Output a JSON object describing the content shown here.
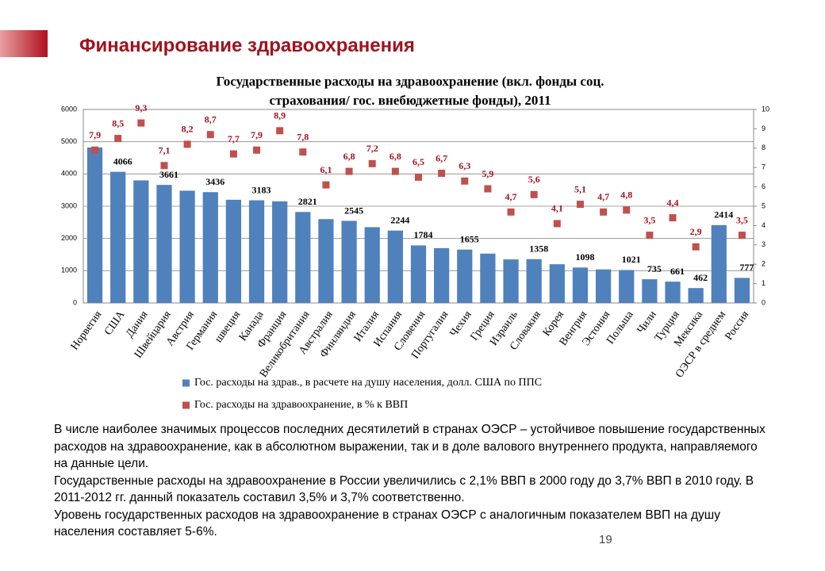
{
  "slide": {
    "title": "Финансирование здравоохранения",
    "paragraphs": [
      "В числе наиболее значимых процессов последних десятилетий в странах ОЭСР – устойчивое повышение государственных расходов на здравоохранение, как в абсолютном выражении, так и в доле валового внутреннего продукта, направляемого на данные цели.",
      "Государственные расходы на здравоохранение в России увеличились с 2,1% ВВП в 2000 году до 3,7% ВВП в 2010 году. В 2011-2012 гг. данный показатель составил 3,5% и 3,7% соответственно.",
      "Уровень государственных расходов на здравоохранение в странах ОЭСР с аналогичным показателем ВВП на душу населения составляет 5-6%."
    ],
    "page_number": 19
  },
  "chart_data": {
    "type": "bar",
    "title": "Государственные расходы на здравоохранение (вкл. фонды соц. страхования/ гос. внебюджетные фонды), 2011",
    "categories": [
      "Норвегия",
      "США",
      "Дания",
      "Швейцария",
      "Австрия",
      "Германия",
      "швеция",
      "Канада",
      "Франция",
      "Великобритания",
      "Австралия",
      "Финляндия",
      "Италия",
      "Испания",
      "Словения",
      "Португалия",
      "Чехия",
      "Греция",
      "Израиль",
      "Словакия",
      "Корея",
      "Венгрия",
      "Эстония",
      "Польша",
      "Чили",
      "Турция",
      "Мексика",
      "ОЭСР в среднем",
      "Россия"
    ],
    "series": [
      {
        "name": "Гос. расходы на здрав., в расчете на душу населения, долл. США по ППС",
        "type": "bar",
        "color": "#4f81bd",
        "values": [
          4820,
          4066,
          3800,
          3661,
          3480,
          3436,
          3200,
          3183,
          3150,
          2821,
          2600,
          2545,
          2350,
          2244,
          1784,
          1700,
          1655,
          1530,
          1350,
          1358,
          1200,
          1098,
          1040,
          1021,
          735,
          661,
          462,
          2414,
          777
        ],
        "value_labels": [
          null,
          "4066",
          null,
          "3661",
          null,
          "3436",
          null,
          "3183",
          null,
          "2821",
          null,
          "2545",
          null,
          "2244",
          "1784",
          null,
          "1655",
          null,
          null,
          "1358",
          null,
          "1098",
          null,
          "1021",
          "735",
          "661",
          "462",
          "2414",
          "777"
        ]
      },
      {
        "name": "Гос. расходы на здравоохранение, в % к ВВП",
        "type": "scatter",
        "axis": "y2",
        "color": "#c0504d",
        "values": [
          7.9,
          8.5,
          9.3,
          7.1,
          8.2,
          8.7,
          7.7,
          7.9,
          8.9,
          7.8,
          6.1,
          6.8,
          7.2,
          6.8,
          6.5,
          6.7,
          6.3,
          5.9,
          4.7,
          5.6,
          4.1,
          5.1,
          4.7,
          4.8,
          3.5,
          4.4,
          2.9,
          null,
          3.5
        ],
        "value_labels": [
          "7,9",
          "8,5",
          "9,3",
          "7,1",
          "8,2",
          "8,7",
          "7,7",
          "7,9",
          "8,9",
          "7,8",
          "6,1",
          "6,8",
          "7,2",
          "6,8",
          "6,5",
          "6,7",
          "6,3",
          "5,9",
          "4,7",
          "5,6",
          "4,1",
          "5,1",
          "4,7",
          "4,8",
          "3,5",
          "4,4",
          "2,9",
          null,
          "3,5"
        ]
      }
    ],
    "ylim": [
      0,
      6000
    ],
    "yticks": [
      0,
      1000,
      2000,
      3000,
      4000,
      5000,
      6000
    ],
    "y2lim": [
      0,
      10
    ],
    "y2ticks": [
      0,
      1,
      2,
      3,
      4,
      5,
      6,
      7,
      8,
      9,
      10
    ],
    "grid": true
  }
}
